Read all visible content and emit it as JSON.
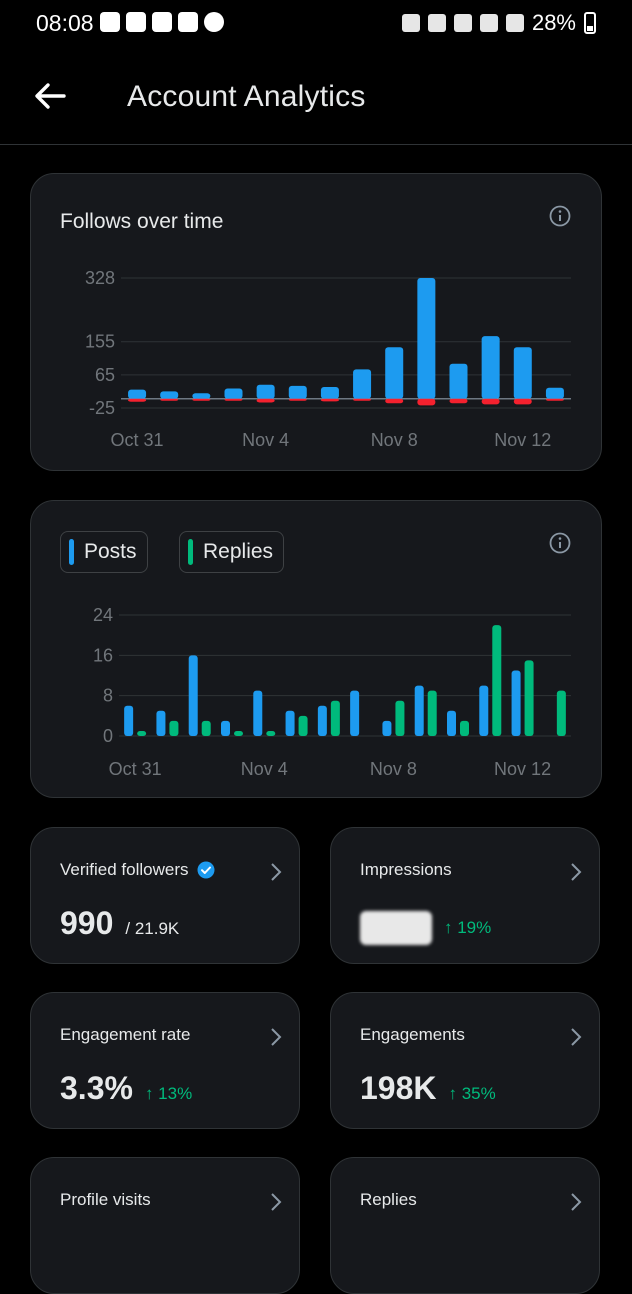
{
  "status_bar": {
    "time": "08:08",
    "battery": "28%",
    "left_icons": [
      "youtube-icon",
      "app-icon",
      "gallery-icon",
      "youtube-icon",
      "cloud-icon"
    ],
    "right_icons": [
      "lock-icon",
      "mute-icon",
      "wifi-icon",
      "volte-icon",
      "signal-icon"
    ]
  },
  "header": {
    "title": "Account Analytics",
    "back_icon": "back-arrow-icon"
  },
  "follows_card": {
    "title": "Follows over time",
    "chart_data": {
      "type": "bar",
      "categories": [
        "Oct 31",
        "Nov 1",
        "Nov 2",
        "Nov 3",
        "Nov 4",
        "Nov 5",
        "Nov 6",
        "Nov 7",
        "Nov 8",
        "Nov 9",
        "Nov 10",
        "Nov 11",
        "Nov 12",
        "Nov 13"
      ],
      "x_tick_labels": [
        "Oct 31",
        "Nov 4",
        "Nov 8",
        "Nov 12"
      ],
      "y_ticks": [
        -25,
        65,
        155,
        328
      ],
      "ylim": [
        -25,
        328
      ],
      "series": [
        {
          "color": "#1d9bf0",
          "values": [
            25,
            20,
            15,
            28,
            38,
            35,
            32,
            80,
            140,
            328,
            95,
            170,
            140,
            30
          ]
        },
        {
          "color": "#f4212e",
          "values": [
            -8,
            -3,
            -5,
            -3,
            -10,
            -5,
            -7,
            -5,
            -12,
            -18,
            -12,
            -15,
            -15,
            -5
          ]
        }
      ],
      "grid": true
    }
  },
  "posts_card": {
    "legend": [
      {
        "label": "Posts",
        "color": "#1d9bf0"
      },
      {
        "label": "Replies",
        "color": "#00ba7c"
      }
    ],
    "chart_data": {
      "type": "bar",
      "categories": [
        "Oct 31",
        "Nov 1",
        "Nov 2",
        "Nov 3",
        "Nov 4",
        "Nov 5",
        "Nov 6",
        "Nov 7",
        "Nov 8",
        "Nov 9",
        "Nov 10",
        "Nov 11",
        "Nov 12",
        "Nov 13"
      ],
      "x_tick_labels": [
        "Oct 31",
        "Nov 4",
        "Nov 8",
        "Nov 12"
      ],
      "y_ticks": [
        0,
        8,
        16,
        24
      ],
      "ylim": [
        0,
        24
      ],
      "series": [
        {
          "name": "Posts",
          "color": "#1d9bf0",
          "values": [
            6,
            5,
            16,
            3,
            9,
            5,
            6,
            9,
            3,
            10,
            5,
            10,
            13,
            0
          ]
        },
        {
          "name": "Replies",
          "color": "#00ba7c",
          "values": [
            1,
            3,
            3,
            1,
            1,
            4,
            7,
            0,
            7,
            9,
            3,
            22,
            15,
            9
          ]
        }
      ],
      "grid": true
    }
  },
  "metrics": [
    {
      "label": "Verified followers",
      "value": "990",
      "secondary": "/ 21.9K",
      "change": "",
      "verified_icon": "verified-badge-icon"
    },
    {
      "label": "Impressions",
      "value": "",
      "secondary": "",
      "change": "↑ 19%",
      "redacted": true
    },
    {
      "label": "Engagement rate",
      "value": "3.3%",
      "secondary": "",
      "change": "↑ 13%"
    },
    {
      "label": "Engagements",
      "value": "198K",
      "secondary": "",
      "change": "↑ 35%"
    },
    {
      "label": "Profile visits",
      "value": "",
      "secondary": "",
      "change": ""
    },
    {
      "label": "Replies",
      "value": "",
      "secondary": "",
      "change": ""
    }
  ]
}
